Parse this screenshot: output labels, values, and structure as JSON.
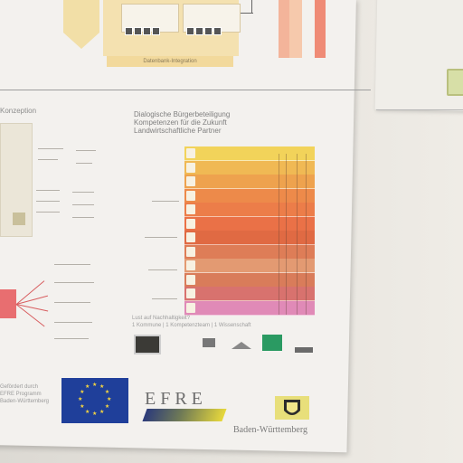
{
  "photo": {
    "description_items": {
      "top_caption": "Datenbank-Integration",
      "left_heading": "Konzeption",
      "title_lines": [
        "Dialogische Bürgerbeteiligung",
        "Kompetenzen für die Zukunft",
        "Landwirtschaftliche Partner"
      ],
      "bottom_caption_lines": [
        "Lust auf Nachhaltigkeit?",
        "1 Kommune | 1 Kompetenzteam | 1 Wissenschaft"
      ],
      "left_foot_lines": [
        "Gefördert durch",
        "EFRE Programm",
        "Baden-Württemberg"
      ]
    },
    "logos": {
      "efre": "EFRE",
      "bw": "Baden-Württemberg"
    },
    "table_rows": [
      {
        "color": "#f2d35a"
      },
      {
        "color": "#f0b954"
      },
      {
        "color": "#eea24e"
      },
      {
        "color": "#ed8a4a"
      },
      {
        "color": "#ec7d49"
      },
      {
        "color": "#ea7147"
      },
      {
        "color": "#e06a43"
      },
      {
        "color": "#de7d57"
      },
      {
        "color": "#e39a72"
      },
      {
        "color": "#d97c5a"
      },
      {
        "color": "#d8726e"
      },
      {
        "color": "#e08ab7"
      }
    ],
    "colors": {
      "wall": "#e6e3dd",
      "poster": "#f3f1ee",
      "eu_blue": "#1f3f9a",
      "eu_star": "#f6d640"
    }
  }
}
